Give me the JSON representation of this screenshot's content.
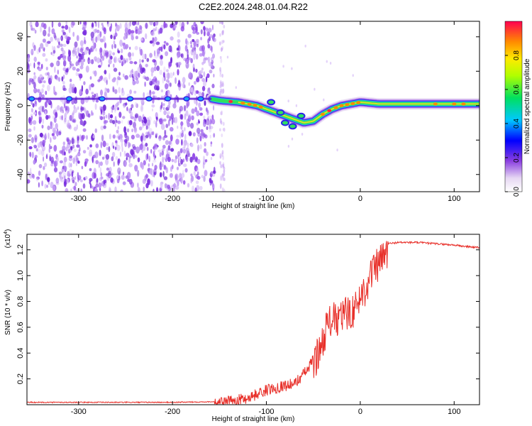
{
  "figure": {
    "title": "C2E2.2024.248.01.04.R22"
  },
  "chart_data": [
    {
      "type": "heatmap",
      "name": "spectrogram",
      "xlabel": "Height of straight line (km)",
      "ylabel": "Frequency (Hz)",
      "xlim": [
        -355,
        127
      ],
      "ylim": [
        -50,
        49
      ],
      "xticks": [
        -300,
        -200,
        -100,
        0,
        100
      ],
      "xtick_labels": [
        "-300",
        "-200",
        "-100",
        "0",
        "100"
      ],
      "yticks": [
        -40,
        -20,
        0,
        20,
        40
      ],
      "ytick_labels": [
        "-40",
        "-20",
        "0",
        "20",
        "40"
      ],
      "colorbar": {
        "label": "Normalized spectral amplitude",
        "range": [
          0,
          1
        ],
        "ticks": [
          0.0,
          0.2,
          0.4,
          0.6,
          0.8
        ],
        "tick_labels": [
          "0.0",
          "0.2",
          "0.4",
          "0.6",
          "0.8"
        ]
      },
      "noise_region_x": [
        -355,
        -155
      ],
      "ridge": {
        "x": [
          -355,
          -300,
          -250,
          -200,
          -160,
          -150,
          -130,
          -110,
          -100,
          -90,
          -80,
          -70,
          -60,
          -50,
          -40,
          -30,
          -20,
          -10,
          0,
          20,
          50,
          80,
          110,
          127
        ],
        "y": [
          4,
          4,
          4,
          4,
          4,
          3,
          2,
          0,
          -2,
          -4,
          -6,
          -8,
          -10,
          -9,
          -5,
          -2,
          0,
          1,
          2,
          1,
          1,
          1,
          1,
          1
        ]
      }
    },
    {
      "type": "line",
      "name": "snr",
      "xlabel": "Height of straight line (km)",
      "ylabel": "SNR (10 * v/v)",
      "multiplier_label": "(x10",
      "multiplier_exp": "4",
      "xlim": [
        -355,
        127
      ],
      "ylim": [
        0,
        1.32
      ],
      "xticks": [
        -300,
        -200,
        -100,
        0,
        100
      ],
      "xtick_labels": [
        "-300",
        "-200",
        "-100",
        "0",
        "100"
      ],
      "yticks": [
        0.2,
        0.4,
        0.6,
        0.8,
        1.0,
        1.2
      ],
      "ytick_labels": [
        "0.2",
        "0.4",
        "0.6",
        "0.8",
        "1.0",
        "1.2"
      ],
      "series": [
        {
          "name": "SNR",
          "color": "#e8302a",
          "x": [
            -355,
            -200,
            -155,
            -140,
            -120,
            -100,
            -85,
            -70,
            -55,
            -45,
            -40,
            -35,
            -30,
            -25,
            -20,
            -15,
            -10,
            -5,
            0,
            5,
            10,
            15,
            20,
            25,
            30,
            40,
            60,
            80,
            100,
            110,
            127
          ],
          "y": [
            0.02,
            0.02,
            0.025,
            0.04,
            0.07,
            0.13,
            0.16,
            0.18,
            0.3,
            0.45,
            0.55,
            0.68,
            0.72,
            0.7,
            0.74,
            0.76,
            0.78,
            0.8,
            0.9,
            0.95,
            1.05,
            1.1,
            1.15,
            1.2,
            1.25,
            1.26,
            1.26,
            1.25,
            1.24,
            1.23,
            1.22
          ]
        }
      ]
    }
  ]
}
